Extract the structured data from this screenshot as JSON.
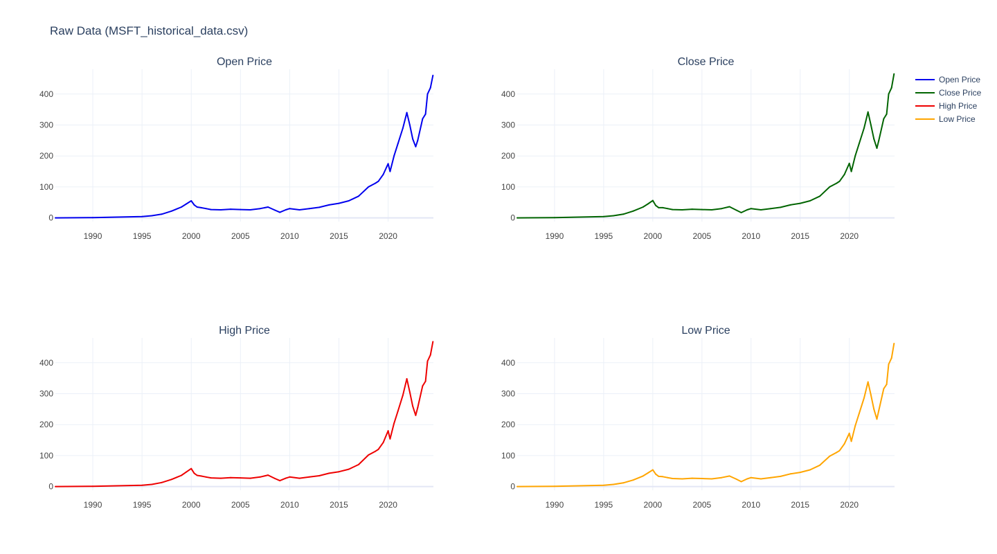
{
  "figure_title": "Raw Data (MSFT_historical_data.csv)",
  "colors": {
    "open": "#0000ee",
    "close": "#006400",
    "high": "#ee0000",
    "low": "#ffa500"
  },
  "legend": [
    {
      "label": "Open Price",
      "color": "#0000ee"
    },
    {
      "label": "Close Price",
      "color": "#006400"
    },
    {
      "label": "High Price",
      "color": "#ee0000"
    },
    {
      "label": "Low Price",
      "color": "#ffa500"
    }
  ],
  "chart_data": [
    {
      "type": "line",
      "title": "Open Price",
      "color": "#0000ee",
      "xlim": [
        1986.2,
        2024.6
      ],
      "ylim": [
        -12,
        480
      ],
      "xticks": [
        1990,
        1995,
        2000,
        2005,
        2010,
        2015,
        2020
      ],
      "yticks": [
        0,
        100,
        200,
        300,
        400
      ],
      "x": [
        1986.2,
        1990,
        1995,
        1996,
        1997,
        1998,
        1999,
        1999.5,
        2000,
        2000.3,
        2000.6,
        2001,
        2001.5,
        2002,
        2003,
        2004,
        2005,
        2006,
        2007,
        2007.8,
        2008.5,
        2009,
        2009.6,
        2010,
        2011,
        2012,
        2013,
        2014,
        2015,
        2016,
        2017,
        2018,
        2018.7,
        2019,
        2019.5,
        2020,
        2020.2,
        2020.6,
        2021,
        2021.5,
        2021.9,
        2022.2,
        2022.5,
        2022.8,
        2023,
        2023.5,
        2023.8,
        2024,
        2024.3,
        2024.55
      ],
      "values": [
        0.1,
        1,
        4,
        7,
        12,
        22,
        35,
        45,
        55,
        42,
        35,
        33,
        30,
        27,
        26,
        28,
        27,
        26,
        30,
        35,
        25,
        18,
        26,
        30,
        26,
        30,
        34,
        42,
        47,
        55,
        70,
        100,
        112,
        118,
        140,
        175,
        150,
        200,
        240,
        290,
        340,
        300,
        255,
        230,
        250,
        320,
        335,
        400,
        420,
        460
      ]
    },
    {
      "type": "line",
      "title": "Close Price",
      "color": "#006400",
      "xlim": [
        1986.2,
        2024.6
      ],
      "ylim": [
        -12,
        480
      ],
      "xticks": [
        1990,
        1995,
        2000,
        2005,
        2010,
        2015,
        2020
      ],
      "yticks": [
        0,
        100,
        200,
        300,
        400
      ],
      "x": [
        1986.2,
        1990,
        1995,
        1996,
        1997,
        1998,
        1999,
        1999.5,
        2000,
        2000.3,
        2000.6,
        2001,
        2001.5,
        2002,
        2003,
        2004,
        2005,
        2006,
        2007,
        2007.8,
        2008.5,
        2009,
        2009.6,
        2010,
        2011,
        2012,
        2013,
        2014,
        2015,
        2016,
        2017,
        2018,
        2018.7,
        2019,
        2019.5,
        2020,
        2020.2,
        2020.6,
        2021,
        2021.5,
        2021.9,
        2022.2,
        2022.5,
        2022.8,
        2023,
        2023.5,
        2023.8,
        2024,
        2024.3,
        2024.55
      ],
      "values": [
        0.1,
        1,
        4,
        7,
        12,
        22,
        35,
        45,
        56,
        40,
        33,
        33,
        30,
        27,
        26,
        28,
        27,
        26,
        30,
        36,
        25,
        17,
        26,
        30,
        26,
        30,
        34,
        42,
        47,
        55,
        70,
        100,
        112,
        118,
        140,
        176,
        150,
        200,
        240,
        290,
        342,
        300,
        255,
        225,
        250,
        320,
        335,
        400,
        420,
        465
      ]
    },
    {
      "type": "line",
      "title": "High Price",
      "color": "#ee0000",
      "xlim": [
        1986.2,
        2024.6
      ],
      "ylim": [
        -12,
        480
      ],
      "xticks": [
        1990,
        1995,
        2000,
        2005,
        2010,
        2015,
        2020
      ],
      "yticks": [
        0,
        100,
        200,
        300,
        400
      ],
      "x": [
        1986.2,
        1990,
        1995,
        1996,
        1997,
        1998,
        1999,
        1999.5,
        2000,
        2000.3,
        2000.6,
        2001,
        2001.5,
        2002,
        2003,
        2004,
        2005,
        2006,
        2007,
        2007.8,
        2008.5,
        2009,
        2009.6,
        2010,
        2011,
        2012,
        2013,
        2014,
        2015,
        2016,
        2017,
        2018,
        2018.7,
        2019,
        2019.5,
        2020,
        2020.2,
        2020.6,
        2021,
        2021.5,
        2021.9,
        2022.2,
        2022.5,
        2022.8,
        2023,
        2023.5,
        2023.8,
        2024,
        2024.3,
        2024.55
      ],
      "values": [
        0.1,
        1,
        4,
        7,
        13,
        23,
        36,
        47,
        58,
        43,
        36,
        34,
        31,
        28,
        27,
        29,
        28,
        27,
        31,
        37,
        26,
        19,
        27,
        31,
        27,
        31,
        35,
        43,
        48,
        56,
        71,
        102,
        114,
        120,
        142,
        180,
        154,
        204,
        244,
        295,
        348,
        305,
        260,
        230,
        255,
        325,
        340,
        405,
        425,
        468
      ]
    },
    {
      "type": "line",
      "title": "Low Price",
      "color": "#ffa500",
      "xlim": [
        1986.2,
        2024.6
      ],
      "ylim": [
        -12,
        480
      ],
      "xticks": [
        1990,
        1995,
        2000,
        2005,
        2010,
        2015,
        2020
      ],
      "yticks": [
        0,
        100,
        200,
        300,
        400
      ],
      "x": [
        1986.2,
        1990,
        1995,
        1996,
        1997,
        1998,
        1999,
        1999.5,
        2000,
        2000.3,
        2000.6,
        2001,
        2001.5,
        2002,
        2003,
        2004,
        2005,
        2006,
        2007,
        2007.8,
        2008.5,
        2009,
        2009.6,
        2010,
        2011,
        2012,
        2013,
        2014,
        2015,
        2016,
        2017,
        2018,
        2018.7,
        2019,
        2019.5,
        2020,
        2020.2,
        2020.6,
        2021,
        2021.5,
        2021.9,
        2022.2,
        2022.5,
        2022.8,
        2023,
        2023.5,
        2023.8,
        2024,
        2024.3,
        2024.55
      ],
      "values": [
        0.1,
        1,
        4,
        7,
        12,
        21,
        34,
        44,
        54,
        40,
        33,
        32,
        29,
        26,
        25,
        27,
        26,
        25,
        29,
        34,
        24,
        16,
        25,
        29,
        25,
        29,
        33,
        41,
        46,
        54,
        69,
        98,
        110,
        116,
        138,
        172,
        146,
        196,
        236,
        286,
        338,
        296,
        250,
        218,
        246,
        316,
        330,
        395,
        415,
        462
      ]
    }
  ]
}
